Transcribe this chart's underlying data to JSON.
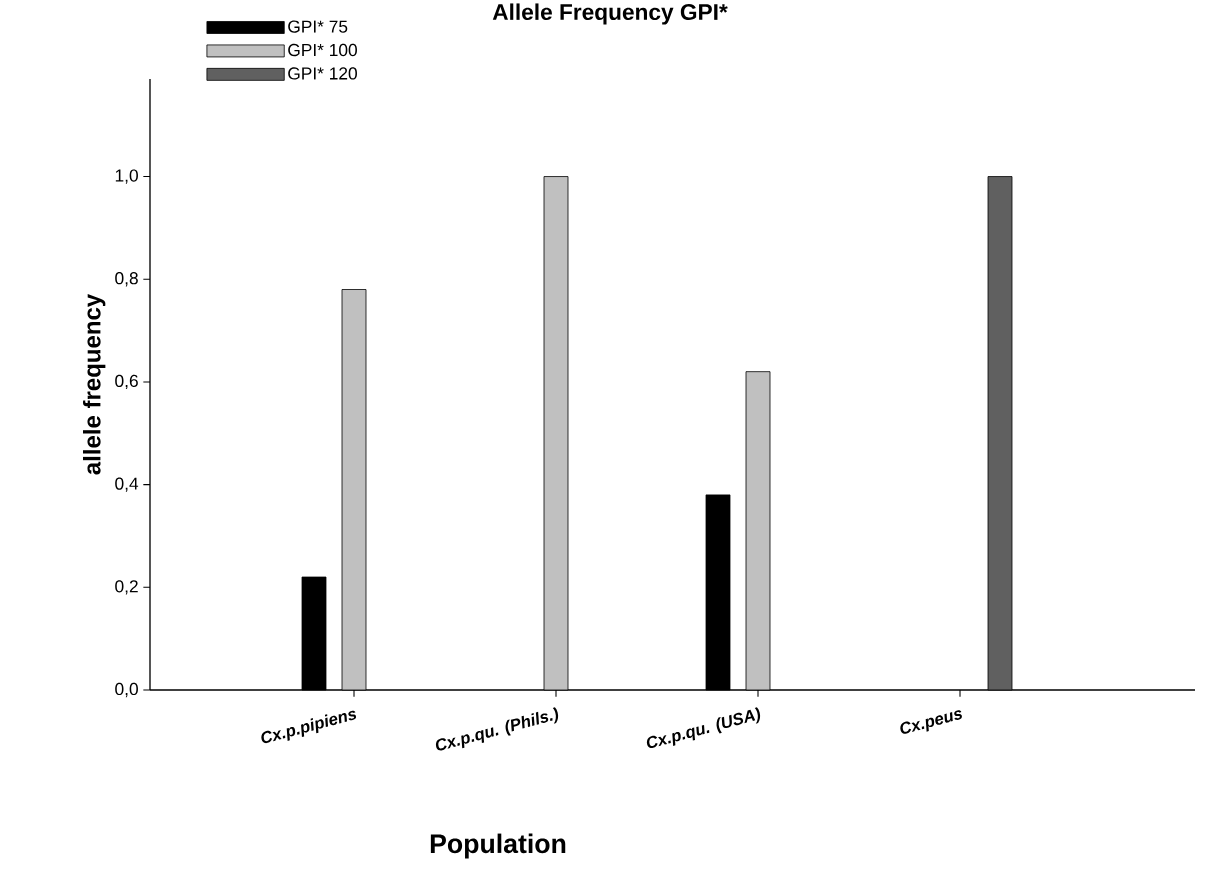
{
  "chart_data": {
    "type": "bar",
    "title": "Allele Frequency GPI*",
    "xlabel": "Population",
    "ylabel": "allele frequency",
    "categories": [
      "Cx.p.pipiens",
      "Cx.p.qu. (Phils.)",
      "Cx.p.qu. (USA)",
      "Cx.peus"
    ],
    "series": [
      {
        "name": "GPI* 75",
        "color": "#000000",
        "values": [
          0.22,
          null,
          0.38,
          null
        ]
      },
      {
        "name": "GPI* 100",
        "color": "#c0c0c0",
        "values": [
          0.78,
          1.0,
          0.62,
          null
        ]
      },
      {
        "name": "GPI* 120",
        "color": "#606060",
        "values": [
          null,
          null,
          null,
          1.0
        ]
      }
    ],
    "ylim": [
      0,
      1.19
    ],
    "yticks": [
      {
        "value": 0,
        "label": "0,0"
      },
      {
        "value": 0.2,
        "label": "0,2"
      },
      {
        "value": 0.4,
        "label": "0,4"
      },
      {
        "value": 0.6,
        "label": "0,6"
      },
      {
        "value": 0.8,
        "label": "0,8"
      },
      {
        "value": 1.0,
        "label": "1,0"
      }
    ],
    "legend": "top left",
    "grid": false
  }
}
